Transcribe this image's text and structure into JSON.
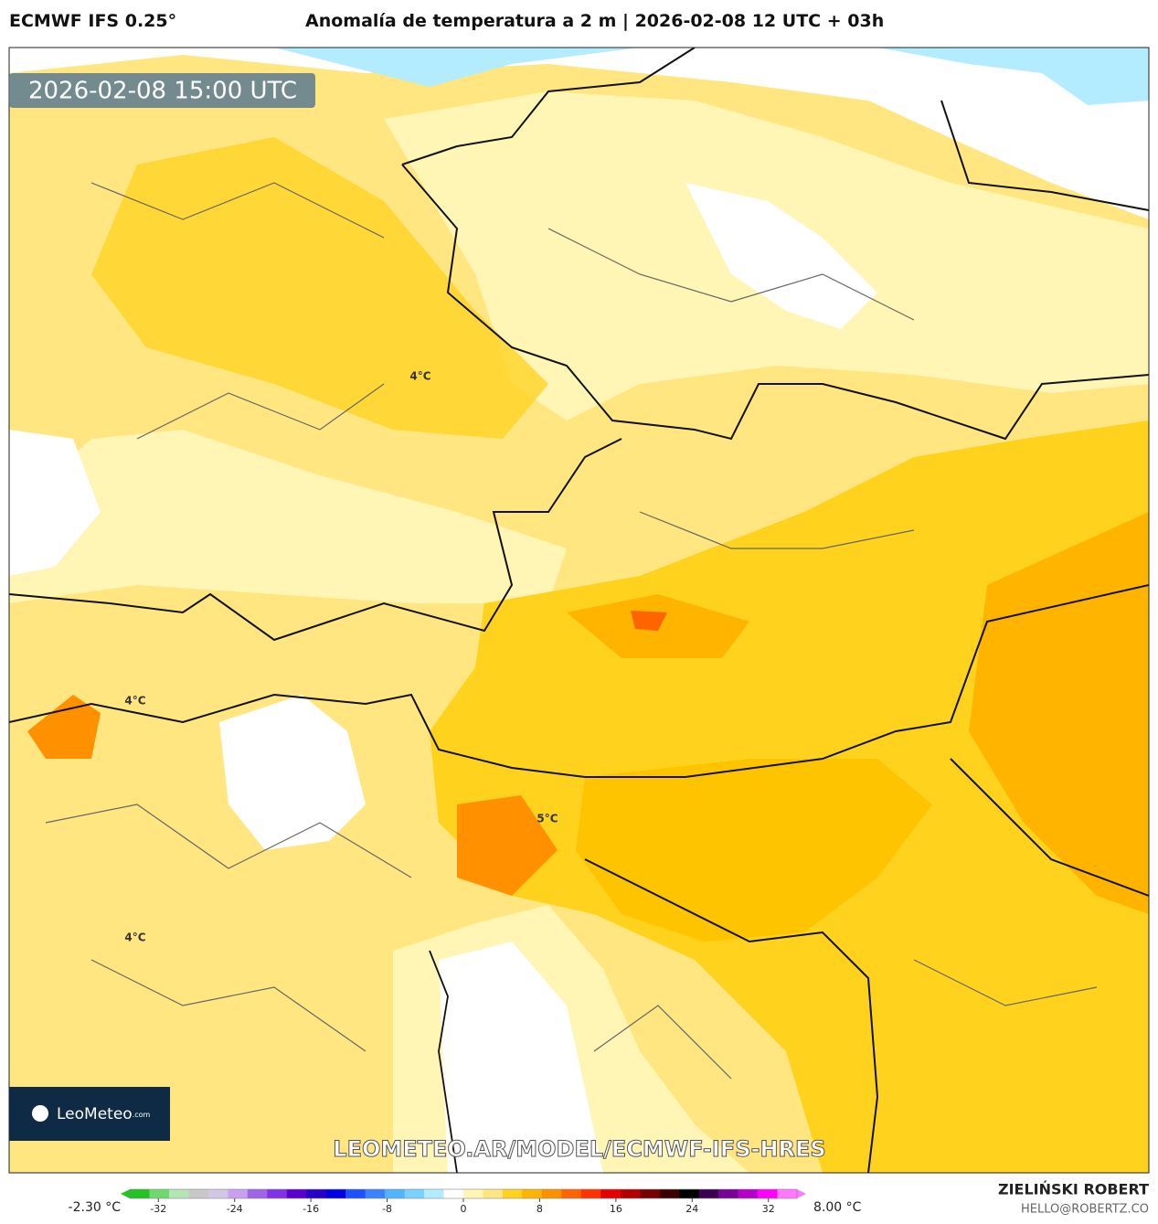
{
  "header": {
    "model": "ECMWF IFS 0.25°",
    "title": "Anomalía de temperatura a 2 m | 2026-02-08 12 UTC + 03h"
  },
  "map": {
    "timestamp": "2026-02-08 15:00 UTC",
    "contour_labels": [
      "4°C",
      "4°C",
      "5°C",
      "4°C"
    ],
    "watermark": "LEOMETEO.AR/MODEL/ECMWF-IFS-HRES",
    "logo": {
      "name": "LeoMeteo",
      "suffix": ".com"
    }
  },
  "colorbar": {
    "min_label": "-2.30 °C",
    "max_label": "8.00 °C",
    "lim": [
      -35,
      35
    ],
    "ticks": [
      -32,
      -24,
      -16,
      -8,
      0,
      8,
      16,
      24,
      32
    ],
    "colors": [
      "#22c322",
      "#6fd86f",
      "#b4e6b4",
      "#c8c8c8",
      "#d2c8e6",
      "#c8a0f0",
      "#a064e6",
      "#8232e6",
      "#5a00d0",
      "#2800c8",
      "#0000e6",
      "#1e50ff",
      "#3c82ff",
      "#50b4ff",
      "#78d2ff",
      "#b4ecff",
      "#ffffff",
      "#fff5b4",
      "#ffe680",
      "#ffd21e",
      "#ffb400",
      "#ff9100",
      "#ff6400",
      "#ff3200",
      "#e60000",
      "#b40000",
      "#780000",
      "#3c0000",
      "#000000",
      "#3c0050",
      "#780096",
      "#b400c8",
      "#ff00ff",
      "#ff78ff"
    ]
  },
  "footer": {
    "author": "ZIELIŃSKI ROBERT",
    "email": "HELLO@ROBERTZ.CO"
  }
}
